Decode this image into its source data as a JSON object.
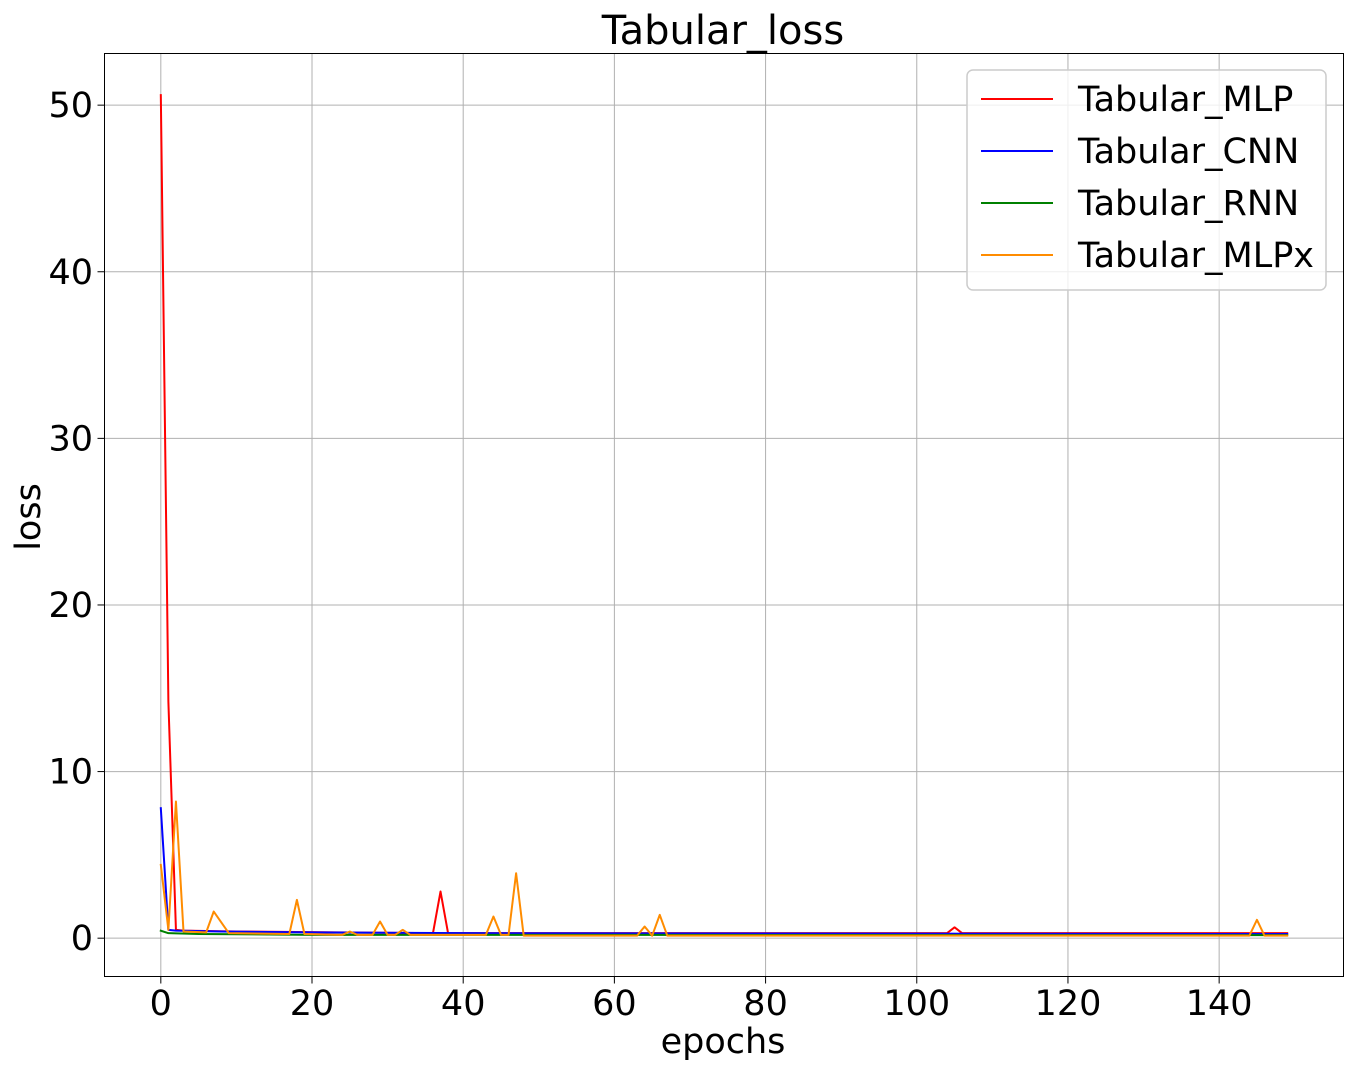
{
  "chart_data": {
    "type": "line",
    "title": "Tabular_loss",
    "xlabel": "epochs",
    "ylabel": "loss",
    "xlim": [
      -7.45,
      156.45
    ],
    "ylim": [
      -2.3,
      53.1
    ],
    "xticks": [
      0,
      20,
      40,
      60,
      80,
      100,
      120,
      140
    ],
    "yticks": [
      0,
      10,
      20,
      30,
      40,
      50
    ],
    "grid": true,
    "legend_position": "top-right",
    "series": [
      {
        "name": "Tabular_MLP",
        "color": "#ff0000",
        "points": [
          [
            0,
            50.6
          ],
          [
            1,
            14.2
          ],
          [
            2,
            0.5
          ],
          [
            3,
            0.45
          ],
          [
            10,
            0.4
          ],
          [
            36,
            0.3
          ],
          [
            37,
            2.8
          ],
          [
            38,
            0.3
          ],
          [
            104,
            0.3
          ],
          [
            105,
            0.65
          ],
          [
            106,
            0.3
          ],
          [
            149,
            0.3
          ]
        ]
      },
      {
        "name": "Tabular_CNN",
        "color": "#0000ff",
        "points": [
          [
            0,
            7.8
          ],
          [
            1,
            0.5
          ],
          [
            2,
            0.45
          ],
          [
            8,
            0.4
          ],
          [
            20,
            0.35
          ],
          [
            40,
            0.3
          ],
          [
            149,
            0.25
          ]
        ]
      },
      {
        "name": "Tabular_RNN",
        "color": "#008000",
        "points": [
          [
            0,
            0.45
          ],
          [
            1,
            0.3
          ],
          [
            5,
            0.25
          ],
          [
            20,
            0.2
          ],
          [
            40,
            0.2
          ],
          [
            149,
            0.18
          ]
        ]
      },
      {
        "name": "Tabular_MLPx",
        "color": "#ff8c00",
        "points": [
          [
            0,
            4.4
          ],
          [
            1,
            0.5
          ],
          [
            2,
            8.2
          ],
          [
            3,
            0.4
          ],
          [
            6,
            0.35
          ],
          [
            7,
            1.6
          ],
          [
            9,
            0.3
          ],
          [
            17,
            0.25
          ],
          [
            18,
            2.3
          ],
          [
            19,
            0.25
          ],
          [
            24,
            0.2
          ],
          [
            25,
            0.4
          ],
          [
            26,
            0.2
          ],
          [
            28,
            0.2
          ],
          [
            29,
            1.0
          ],
          [
            30,
            0.2
          ],
          [
            31,
            0.2
          ],
          [
            32,
            0.5
          ],
          [
            33,
            0.2
          ],
          [
            43,
            0.2
          ],
          [
            44,
            1.3
          ],
          [
            45,
            0.2
          ],
          [
            46,
            0.2
          ],
          [
            47,
            3.9
          ],
          [
            48,
            0.15
          ],
          [
            63,
            0.15
          ],
          [
            64,
            0.7
          ],
          [
            65,
            0.15
          ],
          [
            66,
            1.4
          ],
          [
            67,
            0.15
          ],
          [
            144,
            0.15
          ],
          [
            145,
            1.1
          ],
          [
            146,
            0.15
          ],
          [
            149,
            0.15
          ]
        ]
      }
    ]
  }
}
